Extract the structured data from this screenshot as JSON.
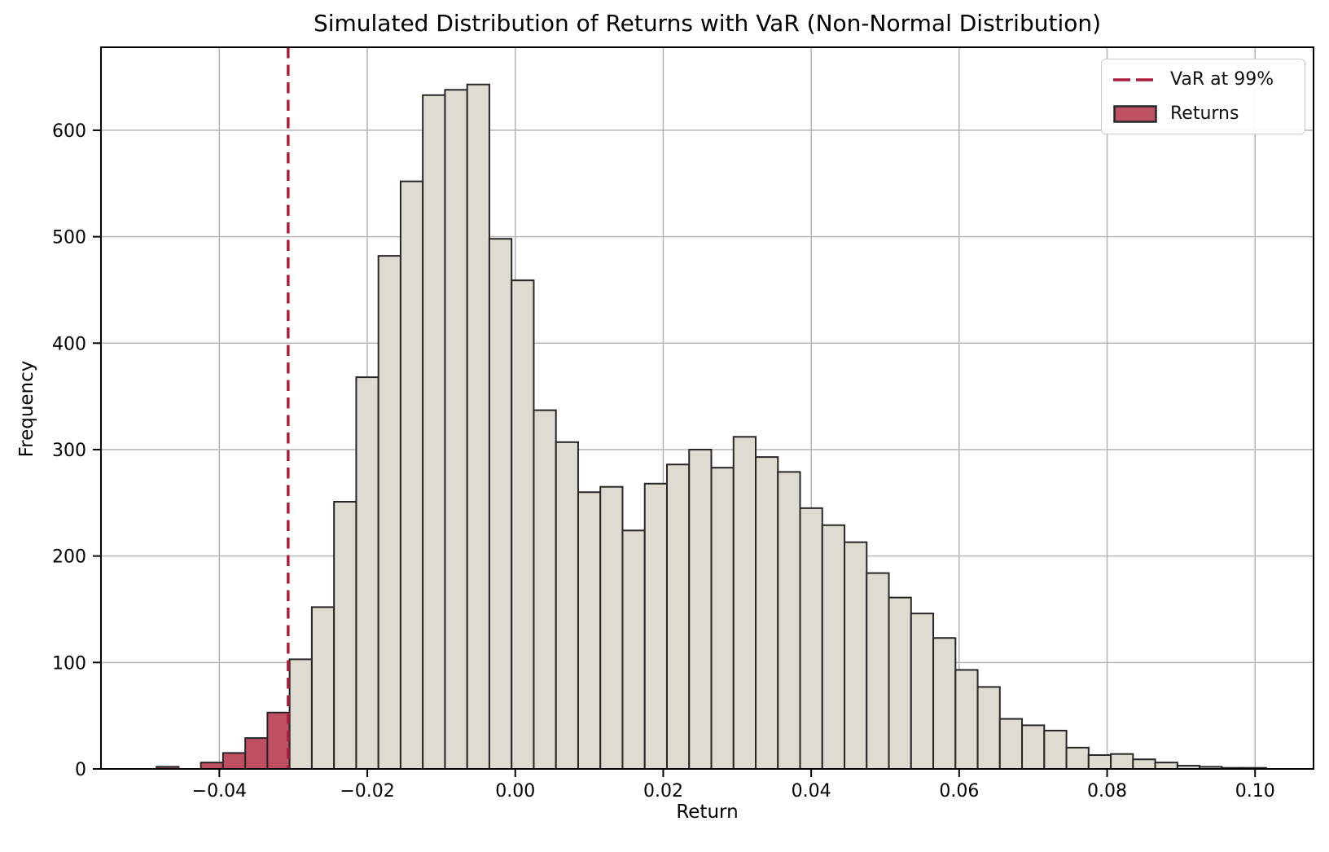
{
  "chart_data": {
    "type": "bar",
    "subtype": "histogram",
    "title": "Simulated Distribution of Returns with VaR (Non-Normal Distribution)",
    "xlabel": "Return",
    "ylabel": "Frequency",
    "xlim": [
      -0.056,
      0.1079
    ],
    "ylim": [
      0,
      678
    ],
    "grid": true,
    "legend_position": "upper-right",
    "x_tick_values": [
      -0.04,
      -0.02,
      0.0,
      0.02,
      0.04,
      0.06,
      0.08,
      0.1
    ],
    "x_tick_labels": [
      "−0.04",
      "−0.02",
      "0.00",
      "0.02",
      "0.04",
      "0.06",
      "0.08",
      "0.10"
    ],
    "y_tick_values": [
      0,
      100,
      200,
      300,
      400,
      500,
      600
    ],
    "y_tick_labels": [
      "0",
      "100",
      "200",
      "300",
      "400",
      "500",
      "600"
    ],
    "bin_start": -0.0485,
    "bin_width": 0.003,
    "frequencies": [
      2,
      0,
      6,
      15,
      29,
      53,
      103,
      152,
      251,
      368,
      482,
      552,
      633,
      638,
      643,
      498,
      459,
      337,
      307,
      260,
      265,
      224,
      268,
      286,
      300,
      283,
      312,
      293,
      279,
      245,
      229,
      213,
      184,
      161,
      146,
      123,
      93,
      77,
      47,
      41,
      36,
      20,
      13,
      14,
      9,
      6,
      3,
      2,
      1,
      1
    ],
    "tail_bins_below_var": 6,
    "var_line": {
      "x": -0.0307,
      "style": "dashed"
    },
    "colors": {
      "bar_fill": "#dedcd1",
      "bar_fill_tail": "#bd4f60",
      "bar_edge": "#262626",
      "var_line": "#ad1d3c",
      "grid": "#b4b4b4",
      "spine": "#000000"
    }
  },
  "legend": {
    "var_label": "VaR at 99%",
    "returns_label": "Returns"
  }
}
